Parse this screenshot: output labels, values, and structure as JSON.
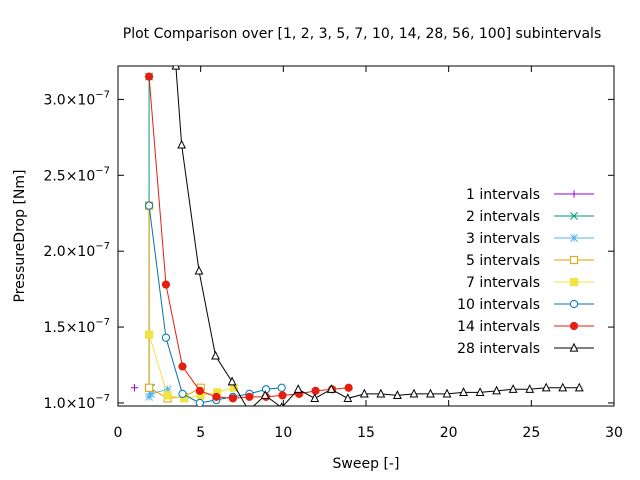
{
  "chart_data": {
    "type": "line",
    "title": "Plot Comparison over [1, 2, 3, 5, 7, 10, 14, 28, 56, 100] subintervals",
    "xlabel": "Sweep [-]",
    "ylabel": "PressureDrop [Nm]",
    "xlim": [
      0,
      30
    ],
    "ylim": [
      9.8e-08,
      3.22e-07
    ],
    "x_ticks": [
      0,
      5,
      10,
      15,
      20,
      25,
      30
    ],
    "x_tick_labels": [
      "0",
      "5",
      "10",
      "15",
      "20",
      "25",
      "30"
    ],
    "y_ticks": [
      1e-07,
      1.5e-07,
      2e-07,
      2.5e-07,
      3e-07
    ],
    "y_tick_labels": [
      "1.0×10",
      "1.5×10",
      "2.0×10",
      "2.5×10",
      "3.0×10"
    ],
    "y_tick_exponent": "−7",
    "grid": false,
    "legend_position": "right",
    "series": [
      {
        "name": "1 intervals",
        "color": "#9400d3",
        "marker": "plus",
        "x": [
          1
        ],
        "y": [
          1.1e-07
        ]
      },
      {
        "name": "2 intervals",
        "color": "#009e73",
        "marker": "cross",
        "x": [
          1.88,
          1.88,
          2
        ],
        "y": [
          3.15e-07,
          1.1e-07,
          1.1e-07
        ]
      },
      {
        "name": "3 intervals",
        "color": "#56b4e9",
        "marker": "star",
        "x": [
          1.88,
          1.88,
          2,
          3
        ],
        "y": [
          2.3e-07,
          1.04e-07,
          1.06e-07,
          1.09e-07
        ]
      },
      {
        "name": "5 intervals",
        "color": "#e69f00",
        "marker": "open-square",
        "x": [
          1.88,
          1.88,
          3,
          4,
          5
        ],
        "y": [
          2.3e-07,
          1.1e-07,
          1.03e-07,
          1.04e-07,
          1.1e-07
        ]
      },
      {
        "name": "7 intervals",
        "color": "#f0e442",
        "marker": "filled-square",
        "x": [
          1.88,
          3,
          4,
          5,
          6,
          7
        ],
        "y": [
          1.45e-07,
          1.05e-07,
          1.03e-07,
          1.05e-07,
          1.07e-07,
          1.1e-07
        ]
      },
      {
        "name": "10 intervals",
        "color": "#0072b2",
        "marker": "open-circle",
        "x": [
          1.88,
          2.9,
          3.9,
          4.95,
          5.95,
          6.95,
          7.95,
          8.95,
          9.9
        ],
        "y": [
          2.3e-07,
          1.43e-07,
          1.06e-07,
          1e-07,
          1.02e-07,
          1.04e-07,
          1.06e-07,
          1.09e-07,
          1.1e-07
        ]
      },
      {
        "name": "14 intervals",
        "color": "#e51e10",
        "marker": "filled-circle",
        "x": [
          1.88,
          2.9,
          3.9,
          4.95,
          5.95,
          6.95,
          7.95,
          8.95,
          9.95,
          10.95,
          11.95,
          12.95,
          13.95
        ],
        "y": [
          3.15e-07,
          1.78e-07,
          1.24e-07,
          1.08e-07,
          1.04e-07,
          1.03e-07,
          1.04e-07,
          1.04e-07,
          1.05e-07,
          1.06e-07,
          1.08e-07,
          1.09e-07,
          1.1e-07
        ]
      },
      {
        "name": "28 intervals",
        "color": "#000000",
        "marker": "open-triangle",
        "x": [
          3.5,
          3.85,
          4.9,
          5.9,
          6.9,
          7.9,
          8.9,
          9.9,
          10.9,
          11.9,
          12.9,
          13.9,
          14.9,
          15.9,
          16.9,
          17.9,
          18.9,
          19.9,
          20.9,
          21.9,
          22.9,
          23.9,
          24.9,
          25.9,
          26.9,
          27.9
        ],
        "y": [
          3.22e-07,
          2.7e-07,
          1.87e-07,
          1.31e-07,
          1.14e-07,
          9.5e-08,
          1.05e-07,
          9.7e-08,
          1.09e-07,
          1.03e-07,
          1.09e-07,
          1.03e-07,
          1.06e-07,
          1.06e-07,
          1.05e-07,
          1.06e-07,
          1.06e-07,
          1.06e-07,
          1.07e-07,
          1.07e-07,
          1.08e-07,
          1.09e-07,
          1.09e-07,
          1.1e-07,
          1.1e-07,
          1.1e-07
        ]
      }
    ]
  }
}
